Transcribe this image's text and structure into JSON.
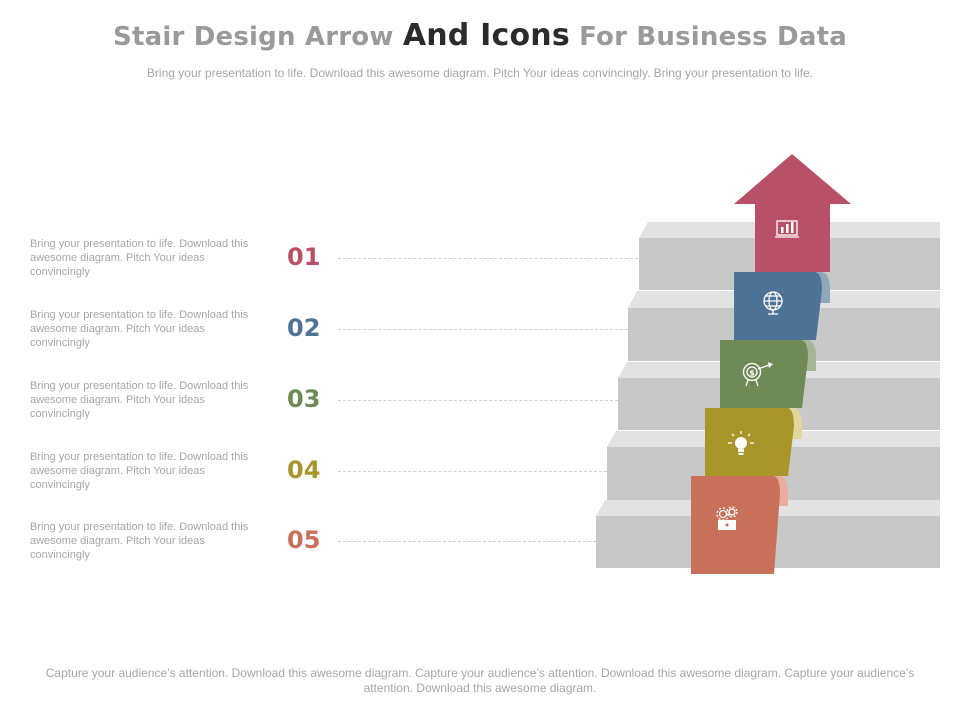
{
  "title": {
    "part1": "Stair Design Arrow ",
    "part2": "And Icons",
    "part3": " For Business Data"
  },
  "subtitle": "Bring your presentation to life. Download this awesome diagram. Pitch Your ideas convincingly. Bring your presentation to life.",
  "steps": [
    {
      "number": "01",
      "text": "Bring your presentation to life. Download this awesome diagram. Pitch Your ideas convincingly",
      "color": "#b85068",
      "icon": "bar-chart-laptop-icon"
    },
    {
      "number": "02",
      "text": "Bring your presentation to life. Download this awesome diagram. Pitch Your ideas convincingly",
      "color": "#4f7396",
      "icon": "globe-icon"
    },
    {
      "number": "03",
      "text": "Bring your presentation to life. Download this awesome diagram. Pitch Your ideas convincingly",
      "color": "#6f8a57",
      "icon": "dollar-target-icon"
    },
    {
      "number": "04",
      "text": "Bring your presentation to life. Download this awesome diagram. Pitch Your ideas convincingly",
      "color": "#a8962b",
      "icon": "lightbulb-icon"
    },
    {
      "number": "05",
      "text": "Bring your presentation to life. Download this awesome diagram. Pitch Your ideas convincingly",
      "color": "#c9705a",
      "icon": "gears-box-icon"
    }
  ],
  "footer": "Capture your audience’s attention. Download this awesome diagram. Capture your audience’s attention. Download this awesome diagram. Capture your audience’s attention. Download this awesome diagram."
}
